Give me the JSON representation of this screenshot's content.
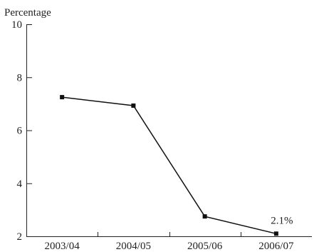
{
  "chart_data": {
    "type": "line",
    "title": "",
    "ylabel": "Percentage",
    "xlabel": "",
    "ylim": [
      2,
      10
    ],
    "yticks": [
      2,
      4,
      6,
      8,
      10
    ],
    "categories": [
      "2003/04",
      "2004/05",
      "2005/06",
      "2006/07"
    ],
    "series": [
      {
        "values": [
          7.25,
          6.93,
          2.75,
          2.1
        ]
      }
    ],
    "annotations": [
      {
        "category": "2006/07",
        "text": "2.1%"
      }
    ],
    "grid": false,
    "line_color": "#111111"
  }
}
